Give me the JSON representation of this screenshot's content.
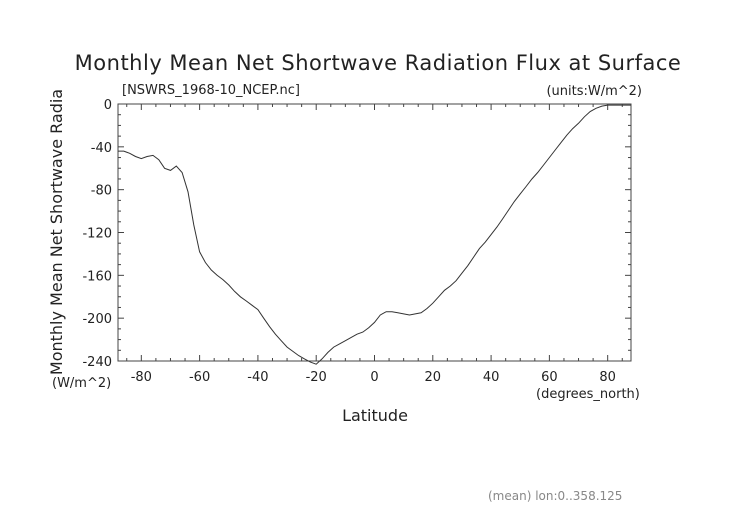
{
  "chart_data": {
    "type": "line",
    "title": "Monthly Mean Net Shortwave Radiation Flux at Surface",
    "subtitle_left": "[NSWRS_1968-10_NCEP.nc]",
    "subtitle_right": "(units:W/m^2)",
    "xlabel": "Latitude",
    "x_units": "(degrees_north)",
    "ylabel": "Monthly Mean Net Shortwave Radia",
    "y_units": "(W/m^2)",
    "footer": "(mean) lon:0..358.125",
    "xlim": [
      -88,
      88
    ],
    "ylim": [
      -240,
      0
    ],
    "x_ticks": [
      -80,
      -60,
      -40,
      -20,
      0,
      20,
      40,
      60,
      80
    ],
    "x_tick_labels": [
      "-80",
      "-60",
      "-40",
      "-20",
      "0",
      "20",
      "40",
      "60",
      "80"
    ],
    "y_ticks": [
      0,
      -40,
      -80,
      -120,
      -160,
      -200,
      -240
    ],
    "y_tick_labels": [
      "0",
      "-40",
      "-80",
      "-120",
      "-160",
      "-200",
      "-240"
    ],
    "grid": false,
    "line_color": "#333333",
    "series": [
      {
        "x": [
          -88,
          -86,
          -84,
          -82,
          -80,
          -78,
          -76,
          -74,
          -72,
          -70,
          -68,
          -66,
          -64,
          -62,
          -60,
          -58,
          -56,
          -54,
          -52,
          -50,
          -48,
          -46,
          -44,
          -42,
          -40,
          -38,
          -36,
          -34,
          -32,
          -30,
          -28,
          -26,
          -24,
          -22,
          -20,
          -18,
          -16,
          -14,
          -12,
          -10,
          -8,
          -6,
          -4,
          -2,
          0,
          2,
          4,
          6,
          8,
          10,
          12,
          14,
          16,
          18,
          20,
          22,
          24,
          26,
          28,
          30,
          32,
          34,
          36,
          38,
          40,
          42,
          44,
          46,
          48,
          50,
          52,
          54,
          56,
          58,
          60,
          62,
          64,
          66,
          68,
          70,
          72,
          74,
          76,
          78,
          80,
          82,
          84,
          86,
          88
        ],
        "values": [
          -44,
          -44,
          -46,
          -49,
          -51,
          -49,
          -48,
          -52,
          -60,
          -62,
          -58,
          -64,
          -82,
          -113,
          -138,
          -148,
          -155,
          -160,
          -164,
          -169,
          -175,
          -180,
          -184,
          -188,
          -192,
          -200,
          -208,
          -215,
          -221,
          -227,
          -231,
          -235,
          -238,
          -241,
          -243,
          -238,
          -232,
          -227,
          -224,
          -221,
          -218,
          -215,
          -213,
          -209,
          -204,
          -197,
          -194,
          -194,
          -195,
          -196,
          -197,
          -196,
          -195,
          -191,
          -186,
          -180,
          -174,
          -170,
          -165,
          -158,
          -151,
          -143,
          -135,
          -129,
          -122,
          -115,
          -107,
          -99,
          -91,
          -84,
          -77,
          -70,
          -64,
          -57,
          -50,
          -43,
          -36,
          -29,
          -23,
          -18,
          -12,
          -7,
          -4,
          -2,
          -1,
          -1,
          -1,
          -1,
          -1
        ]
      }
    ]
  }
}
